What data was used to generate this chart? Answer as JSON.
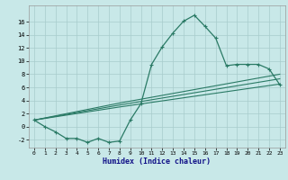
{
  "bg_color": "#c8e8e8",
  "grid_color": "#a8cccc",
  "line_color": "#2a7a65",
  "xlabel": "Humidex (Indice chaleur)",
  "xlim": [
    -0.5,
    23.5
  ],
  "ylim": [
    -3.2,
    18.5
  ],
  "xticks": [
    0,
    1,
    2,
    3,
    4,
    5,
    6,
    7,
    8,
    9,
    10,
    11,
    12,
    13,
    14,
    15,
    16,
    17,
    18,
    19,
    20,
    21,
    22,
    23
  ],
  "yticks": [
    -2,
    0,
    2,
    4,
    6,
    8,
    10,
    12,
    14,
    16
  ],
  "main_x": [
    0,
    1,
    2,
    3,
    4,
    5,
    6,
    7,
    8,
    9,
    10,
    11,
    12,
    13,
    14,
    15,
    16,
    17,
    18,
    19,
    20,
    21,
    22,
    23
  ],
  "main_y": [
    1,
    0,
    -0.8,
    -1.8,
    -1.8,
    -2.4,
    -1.8,
    -2.4,
    -2.2,
    1.0,
    3.5,
    9.5,
    12.2,
    14.3,
    16.1,
    17.0,
    15.3,
    13.5,
    9.3,
    9.5,
    9.5,
    9.5,
    8.8,
    6.4
  ],
  "line1_x": [
    0,
    8,
    23
  ],
  "line1_y": [
    1,
    3.0,
    6.5
  ],
  "line2_x": [
    0,
    8,
    23
  ],
  "line2_y": [
    1,
    3.3,
    7.3
  ],
  "line3_x": [
    0,
    8,
    23
  ],
  "line3_y": [
    1,
    3.6,
    8.0
  ]
}
